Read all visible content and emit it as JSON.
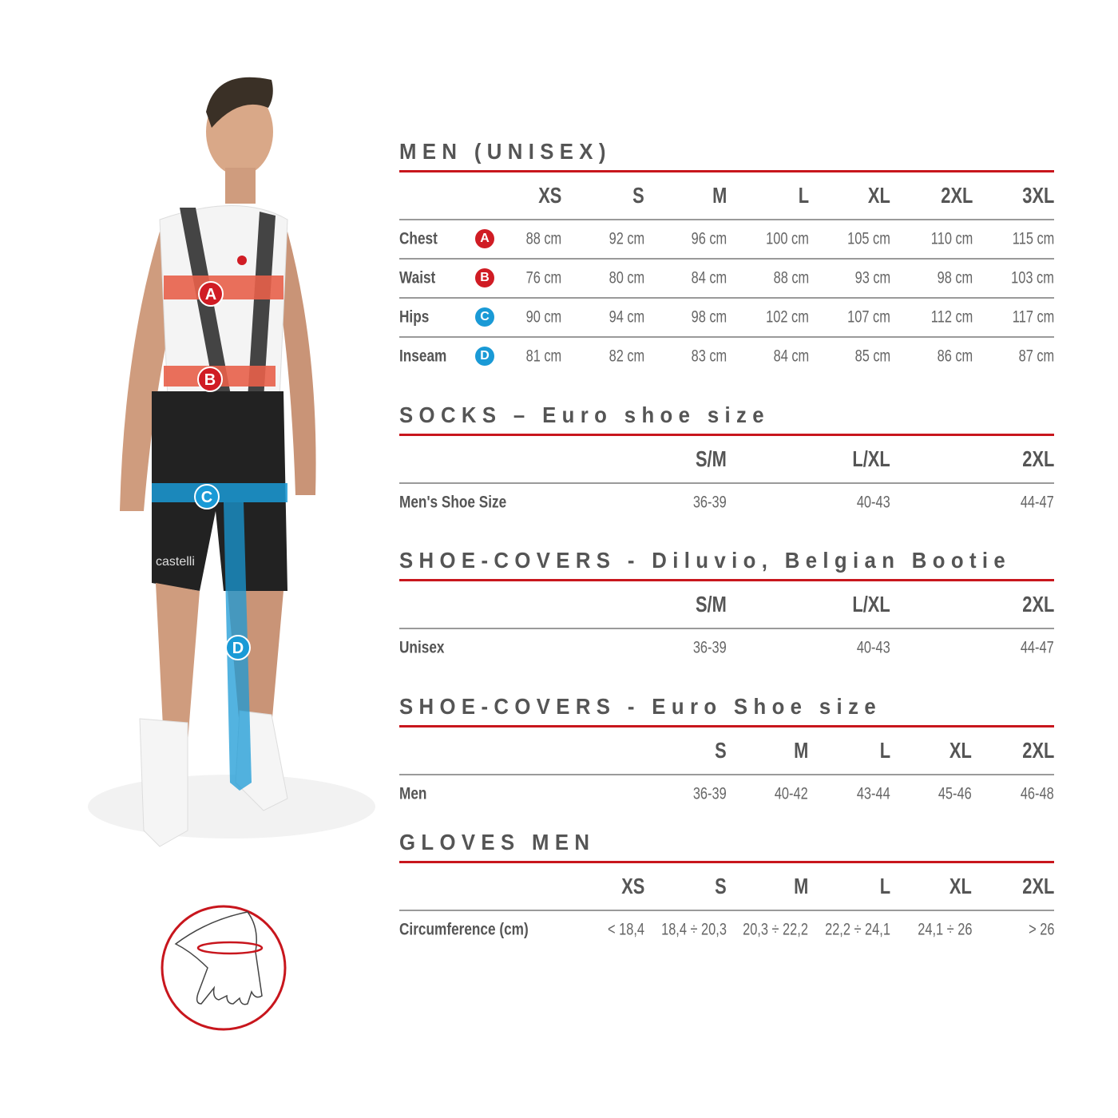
{
  "colors": {
    "accent_red": "#c8161d",
    "badge_red": "#d01c24",
    "badge_blue": "#1a9ad6",
    "text": "#555555"
  },
  "figure": {
    "markers": [
      "A",
      "B",
      "C",
      "D"
    ],
    "brand": "castelli"
  },
  "sections": [
    {
      "title": "MEN (UNISEX)",
      "columns": [
        "XS",
        "S",
        "M",
        "L",
        "XL",
        "2XL",
        "3XL"
      ],
      "rows": [
        {
          "label": "Chest",
          "badge": "A",
          "badge_color": "red",
          "values": [
            "88 cm",
            "92 cm",
            "96 cm",
            "100 cm",
            "105 cm",
            "110 cm",
            "115 cm"
          ]
        },
        {
          "label": "Waist",
          "badge": "B",
          "badge_color": "red",
          "values": [
            "76 cm",
            "80 cm",
            "84 cm",
            "88 cm",
            "93 cm",
            "98 cm",
            "103 cm"
          ]
        },
        {
          "label": "Hips",
          "badge": "C",
          "badge_color": "blue",
          "values": [
            "90 cm",
            "94 cm",
            "98 cm",
            "102 cm",
            "107 cm",
            "112 cm",
            "117 cm"
          ]
        },
        {
          "label": "Inseam",
          "badge": "D",
          "badge_color": "blue",
          "values": [
            "81 cm",
            "82 cm",
            "83 cm",
            "84 cm",
            "85 cm",
            "86 cm",
            "87 cm"
          ]
        }
      ]
    },
    {
      "title": "SOCKS – Euro shoe size",
      "columns": [
        "S/M",
        "L/XL",
        "2XL"
      ],
      "rows": [
        {
          "label": "Men's Shoe Size",
          "values": [
            "36-39",
            "40-43",
            "44-47"
          ]
        }
      ]
    },
    {
      "title": "SHOE-COVERS - Diluvio, Belgian Bootie",
      "columns": [
        "S/M",
        "L/XL",
        "2XL"
      ],
      "rows": [
        {
          "label": "Unisex",
          "values": [
            "36-39",
            "40-43",
            "44-47"
          ]
        }
      ]
    },
    {
      "title": "SHOE-COVERS - Euro Shoe size",
      "columns": [
        "S",
        "M",
        "L",
        "XL",
        "2XL"
      ],
      "rows": [
        {
          "label": "Men",
          "values": [
            "36-39",
            "40-42",
            "43-44",
            "45-46",
            "46-48"
          ]
        }
      ]
    },
    {
      "title": "GLOVES MEN",
      "columns": [
        "XS",
        "S",
        "M",
        "L",
        "XL",
        "2XL"
      ],
      "rows": [
        {
          "label": "Circumference (cm)",
          "values": [
            "< 18,4",
            "18,4 ÷ 20,3",
            "20,3 ÷ 22,2",
            "22,2 ÷ 24,1",
            "24,1 ÷ 26",
            "> 26"
          ]
        }
      ]
    }
  ]
}
